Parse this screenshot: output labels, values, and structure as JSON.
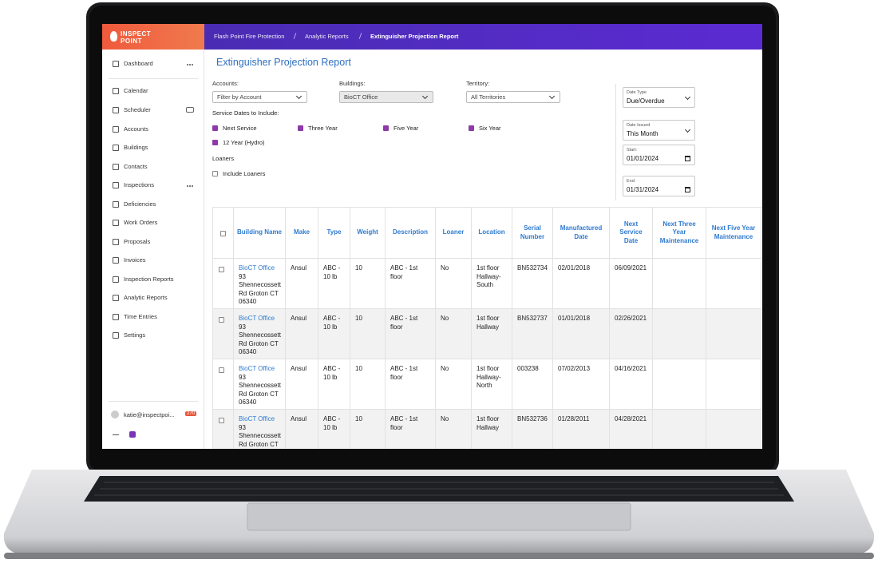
{
  "brand": [
    "INSPECT",
    "POINT"
  ],
  "breadcrumb": [
    "Flash Point Fire Protection",
    "Analytic Reports",
    "Extinguisher Projection Report"
  ],
  "sidebar": {
    "items": [
      "Dashboard",
      "Calendar",
      "Scheduler",
      "Accounts",
      "Buildings",
      "Contacts",
      "Inspections",
      "Deficiencies",
      "Work Orders",
      "Proposals",
      "Invoices",
      "Inspection Reports",
      "Analytic Reports",
      "Time Entries",
      "Settings"
    ],
    "user": "katie@inspectpoi...",
    "badge": "270"
  },
  "report": {
    "title": "Extinguisher Projection Report",
    "accounts": {
      "label": "Accounts:",
      "value": "Filter by Account"
    },
    "buildings": {
      "label": "Buildings:",
      "value": "BioCT Office"
    },
    "territory": {
      "label": "Territory:",
      "value": "All Territories"
    },
    "service_dates_label": "Service Dates to Include:",
    "service_dates": [
      {
        "label": "Next Service",
        "checked": true
      },
      {
        "label": "Three Year",
        "checked": true
      },
      {
        "label": "Five Year",
        "checked": true
      },
      {
        "label": "Six Year",
        "checked": true
      },
      {
        "label": "12 Year (Hydro)",
        "checked": true
      }
    ],
    "loaners_label": "Loaners",
    "loaners": {
      "label": "Include Loaners",
      "checked": false
    },
    "date_type": {
      "label": "Date Type",
      "value": "Due/Overdue"
    },
    "date_issued": {
      "label": "Date Issued",
      "value": "This Month"
    },
    "start": {
      "label": "Start:",
      "value": "01/01/2024"
    },
    "end": {
      "label": "End:",
      "value": "01/31/2024"
    }
  },
  "table": {
    "columns": [
      "Building Name",
      "Make",
      "Type",
      "Weight",
      "Description",
      "Loaner",
      "Location",
      "Serial Number",
      "Manufactured Date",
      "Next Service Date",
      "Next Three Year Maintenance",
      "Next Five Year Maintenance"
    ],
    "rows": [
      {
        "building": "BioCT Office",
        "address": "93 Shennecossett Rd Groton CT 06340",
        "make": "Ansul",
        "type": "ABC - 10 lb",
        "weight": 10,
        "description": "ABC - 1st floor",
        "loaner": "No",
        "location": "1st floor Hallway-South",
        "serial": "BN532734",
        "manufactured": "02/01/2018",
        "next_service": "06/09/2021"
      },
      {
        "building": "BioCT Office",
        "address": "93 Shennecossett Rd Groton CT 06340",
        "make": "Ansul",
        "type": "ABC - 10 lb",
        "weight": 10,
        "description": "ABC - 1st floor",
        "loaner": "No",
        "location": "1st floor Hallway",
        "serial": "BN532737",
        "manufactured": "01/01/2018",
        "next_service": "02/26/2021"
      },
      {
        "building": "BioCT Office",
        "address": "93 Shennecossett Rd Groton CT 06340",
        "make": "Ansul",
        "type": "ABC - 10 lb",
        "weight": 10,
        "description": "ABC - 1st floor",
        "loaner": "No",
        "location": "1st floor Hallway-North",
        "serial": "003238",
        "manufactured": "07/02/2013",
        "next_service": "04/16/2021"
      },
      {
        "building": "BioCT Office",
        "address": "93 Shennecossett Rd Groton CT 06340",
        "make": "Ansul",
        "type": "ABC - 10 lb",
        "weight": 10,
        "description": "ABC - 1st floor",
        "loaner": "No",
        "location": "1st floor Hallway",
        "serial": "BN532736",
        "manufactured": "01/28/2011",
        "next_service": "04/28/2021"
      }
    ]
  }
}
